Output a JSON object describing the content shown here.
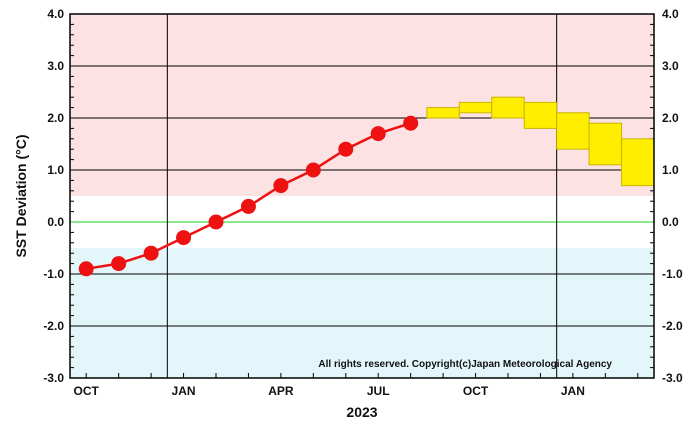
{
  "chart_data": {
    "type": "line",
    "ylabel": "SST Deviation (°C)",
    "year_label": "2023",
    "copyright": "All rights reserved. Copyright(c)Japan Meteorological Agency",
    "ylim": [
      -3.0,
      4.0
    ],
    "y_ticks": [
      "4.0",
      "3.0",
      "2.0",
      "1.0",
      "0.0",
      "-1.0",
      "-2.0",
      "-3.0"
    ],
    "x_tick_labels": [
      {
        "label": "OCT",
        "month": 0
      },
      {
        "label": "JAN",
        "month": 3
      },
      {
        "label": "APR",
        "month": 6
      },
      {
        "label": "JUL",
        "month": 9
      },
      {
        "label": "OCT",
        "month": 12
      },
      {
        "label": "JAN",
        "month": 15
      }
    ],
    "x_month_range": [
      -0.5,
      17.5
    ],
    "vertical_lines_months": [
      2.5,
      14.5
    ],
    "shading": {
      "warm_above": 0.5,
      "cool_below": -0.5,
      "warm_color": "#fde2e4",
      "cool_color": "#e3f7fb"
    },
    "zero_line_color": "#66dd66",
    "observed": {
      "color": "#ee1111",
      "points": [
        {
          "month": 0,
          "value": -0.9
        },
        {
          "month": 1,
          "value": -0.8
        },
        {
          "month": 2,
          "value": -0.6
        },
        {
          "month": 3,
          "value": -0.3
        },
        {
          "month": 4,
          "value": 0.0
        },
        {
          "month": 5,
          "value": 0.3
        },
        {
          "month": 6,
          "value": 0.7
        },
        {
          "month": 7,
          "value": 1.0
        },
        {
          "month": 8,
          "value": 1.4
        },
        {
          "month": 9,
          "value": 1.7
        },
        {
          "month": 10,
          "value": 1.9
        }
      ]
    },
    "forecast": {
      "color": "#ffee00",
      "stroke": "#c8b400",
      "boxes": [
        {
          "month": 11,
          "low": 2.0,
          "high": 2.2
        },
        {
          "month": 12,
          "low": 2.1,
          "high": 2.3
        },
        {
          "month": 13,
          "low": 2.0,
          "high": 2.4
        },
        {
          "month": 14,
          "low": 1.8,
          "high": 2.3
        },
        {
          "month": 15,
          "low": 1.4,
          "high": 2.1
        },
        {
          "month": 16,
          "low": 1.1,
          "high": 1.9
        },
        {
          "month": 17,
          "low": 0.7,
          "high": 1.6
        }
      ]
    }
  }
}
